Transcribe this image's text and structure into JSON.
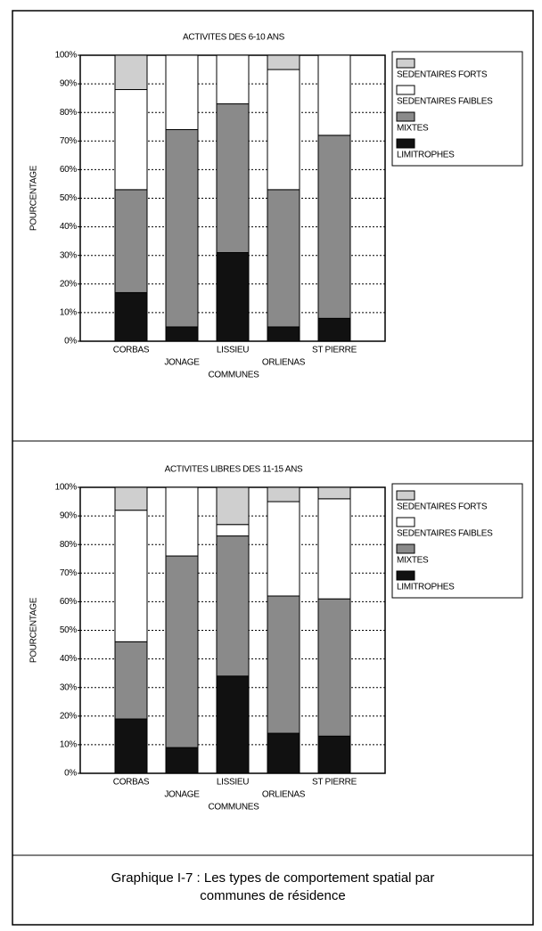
{
  "chart_data": [
    {
      "type": "stacked_bar",
      "title": "ACTIVITES DES 6-10 ANS",
      "x_label": "COMMUNES",
      "y_label": "POURCENTAGE",
      "categories": [
        "CORBAS",
        "JONAGE",
        "LISSIEU",
        "ORLIENAS",
        "ST PIERRE"
      ],
      "series": [
        {
          "name": "LIMITROPHES",
          "color": "#111111",
          "values": [
            17,
            5,
            31,
            5,
            8
          ]
        },
        {
          "name": "MIXTES",
          "color": "#8a8a8a",
          "values": [
            36,
            69,
            52,
            48,
            64
          ]
        },
        {
          "name": "SEDENTAIRES FAIBLES",
          "color": "#ffffff",
          "values": [
            35,
            26,
            17,
            42,
            28
          ]
        },
        {
          "name": "SEDENTAIRES FORTS",
          "color": "#cfcfcf",
          "values": [
            12,
            0,
            0,
            5,
            0
          ]
        }
      ],
      "ylim": [
        0,
        100
      ],
      "yticks": [
        {
          "value": 0,
          "label": "0%"
        },
        {
          "value": 10,
          "label": "10%"
        },
        {
          "value": 20,
          "label": "20%"
        },
        {
          "value": 30,
          "label": "30%"
        },
        {
          "value": 40,
          "label": "40%"
        },
        {
          "value": 50,
          "label": "50%"
        },
        {
          "value": 60,
          "label": "60%"
        },
        {
          "value": 70,
          "label": "70%"
        },
        {
          "value": 80,
          "label": "80%"
        },
        {
          "value": 90,
          "label": "90%"
        },
        {
          "value": 100,
          "label": "100%"
        }
      ],
      "grid": true,
      "legend": "top-right"
    },
    {
      "type": "stacked_bar",
      "title": "ACTIVITES LIBRES DES 11-15 ANS",
      "x_label": "COMMUNES",
      "y_label": "POURCENTAGE",
      "categories": [
        "CORBAS",
        "JONAGE",
        "LISSIEU",
        "ORLIENAS",
        "ST PIERRE"
      ],
      "series": [
        {
          "name": "LIMITROPHES",
          "color": "#111111",
          "values": [
            19,
            9,
            34,
            14,
            13
          ]
        },
        {
          "name": "MIXTES",
          "color": "#8a8a8a",
          "values": [
            27,
            67,
            49,
            48,
            48
          ]
        },
        {
          "name": "SEDENTAIRES FAIBLES",
          "color": "#ffffff",
          "values": [
            46,
            24,
            4,
            33,
            35
          ]
        },
        {
          "name": "SEDENTAIRES FORTS",
          "color": "#cfcfcf",
          "values": [
            8,
            0,
            13,
            5,
            4
          ]
        }
      ],
      "ylim": [
        0,
        100
      ],
      "yticks": [
        {
          "value": 0,
          "label": "0%"
        },
        {
          "value": 10,
          "label": "10%"
        },
        {
          "value": 20,
          "label": "20%"
        },
        {
          "value": 30,
          "label": "30%"
        },
        {
          "value": 40,
          "label": "40%"
        },
        {
          "value": 50,
          "label": "50%"
        },
        {
          "value": 60,
          "label": "60%"
        },
        {
          "value": 70,
          "label": "70%"
        },
        {
          "value": 80,
          "label": "80%"
        },
        {
          "value": 90,
          "label": "90%"
        },
        {
          "value": 100,
          "label": "100%"
        }
      ],
      "grid": true,
      "legend": "top-right"
    }
  ],
  "caption": [
    "Graphique I-7 : Les types de comportement spatial par",
    "communes de résidence"
  ]
}
